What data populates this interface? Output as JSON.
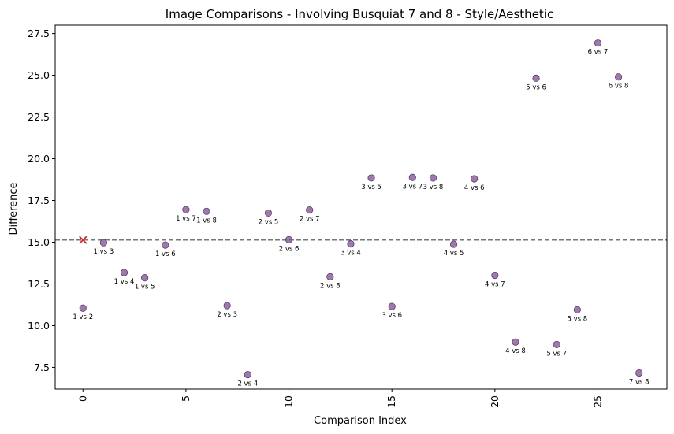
{
  "chart_data": {
    "type": "scatter",
    "title": "Image Comparisons - Involving Busquiat 7 and 8 - Style/Aesthetic",
    "xlabel": "Comparison Index",
    "ylabel": "Difference",
    "xlim": [
      -1.35,
      28.35
    ],
    "ylim": [
      6.2,
      28.0
    ],
    "xticks": [
      0,
      5,
      10,
      15,
      20,
      25
    ],
    "xtick_labels": [
      "0",
      "5",
      "10",
      "15",
      "20",
      "25"
    ],
    "yticks": [
      7.5,
      10.0,
      12.5,
      15.0,
      17.5,
      20.0,
      22.5,
      25.0,
      27.5
    ],
    "ytick_labels": [
      "7.5",
      "10.0",
      "12.5",
      "15.0",
      "17.5",
      "20.0",
      "22.5",
      "25.0",
      "27.5"
    ],
    "reference_line": 15.13,
    "highlight_point": {
      "x": 0,
      "y": 15.13
    },
    "marker_color": "#7b4f8c",
    "highlight_color": "#d62728",
    "line_color": "#777777",
    "points": [
      {
        "x": 0,
        "y": 11.05,
        "label": "1 vs 2"
      },
      {
        "x": 1,
        "y": 14.97,
        "label": "1 vs 3"
      },
      {
        "x": 2,
        "y": 13.18,
        "label": "1 vs 4"
      },
      {
        "x": 3,
        "y": 12.87,
        "label": "1 vs 5"
      },
      {
        "x": 4,
        "y": 14.83,
        "label": "1 vs 6"
      },
      {
        "x": 5,
        "y": 16.95,
        "label": "1 vs 7"
      },
      {
        "x": 6,
        "y": 16.85,
        "label": "1 vs 8"
      },
      {
        "x": 7,
        "y": 11.2,
        "label": "2 vs 3"
      },
      {
        "x": 8,
        "y": 7.07,
        "label": "2 vs 4"
      },
      {
        "x": 9,
        "y": 16.75,
        "label": "2 vs 5"
      },
      {
        "x": 10,
        "y": 15.15,
        "label": "2 vs 6"
      },
      {
        "x": 11,
        "y": 16.93,
        "label": "2 vs 7"
      },
      {
        "x": 12,
        "y": 12.93,
        "label": "2 vs 8"
      },
      {
        "x": 13,
        "y": 14.9,
        "label": "3 vs 4"
      },
      {
        "x": 14,
        "y": 18.85,
        "label": "3 vs 5"
      },
      {
        "x": 15,
        "y": 11.15,
        "label": "3 vs 6"
      },
      {
        "x": 16,
        "y": 18.88,
        "label": "3 vs 7"
      },
      {
        "x": 17,
        "y": 18.85,
        "label": "3 vs 8"
      },
      {
        "x": 18,
        "y": 14.88,
        "label": "4 vs 5"
      },
      {
        "x": 19,
        "y": 18.8,
        "label": "4 vs 6"
      },
      {
        "x": 20,
        "y": 13.02,
        "label": "4 vs 7"
      },
      {
        "x": 21,
        "y": 9.02,
        "label": "4 vs 8"
      },
      {
        "x": 22,
        "y": 24.82,
        "label": "5 vs 6"
      },
      {
        "x": 23,
        "y": 8.87,
        "label": "5 vs 7"
      },
      {
        "x": 24,
        "y": 10.95,
        "label": "5 vs 8"
      },
      {
        "x": 25,
        "y": 26.93,
        "label": "6 vs 7"
      },
      {
        "x": 26,
        "y": 24.9,
        "label": "6 vs 8"
      },
      {
        "x": 27,
        "y": 7.17,
        "label": "7 vs 8"
      }
    ]
  }
}
